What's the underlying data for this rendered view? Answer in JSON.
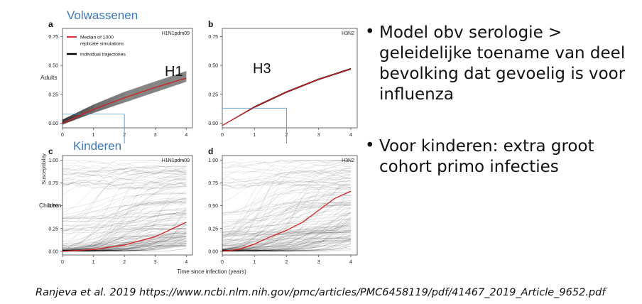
{
  "labels": {
    "adults_group": "Volwassenen",
    "children_group": "Kinderen",
    "row_adults": "Adults",
    "row_children": "Children",
    "y_axis": "Susceptibility",
    "x_axis": "Time since infection (years)",
    "h1": "H1",
    "h3": "H3"
  },
  "bullets": [
    "Model obv serologie > geleidelijke toename van deel bevolking dat gevoelig is voor influenza",
    "Voor kinderen: extra groot cohort primo infecties"
  ],
  "citation": "Ranjeva et al. 2019 https://www.ncbi.nlm.nih.gov/pmc/articles/PMC6458119/pdf/41467_2019_Article_9652.pdf",
  "colors": {
    "median": "#d42020",
    "trajectory": "#000000",
    "guide": "#5aa0d6",
    "group_label": "#3a78c0"
  },
  "chart_data": [
    {
      "panel": "a",
      "type": "line",
      "strain": "H1N1pdm09",
      "group": "Adults",
      "x": [
        0,
        1,
        2,
        3,
        4
      ],
      "xlim": [
        0,
        4.2
      ],
      "ylim": [
        -0.04,
        0.82
      ],
      "xticks": [
        "0",
        "1",
        "2",
        "3",
        "4"
      ],
      "yticks": [
        0,
        0.25,
        0.5,
        0.75
      ],
      "ytick_labels": [
        "0.00",
        "0.25",
        "0.50",
        "0.75"
      ],
      "legend": {
        "median": "Median of 1000\nreplicate simulations",
        "trajectories": "Individual trajectories",
        "position": "top-left"
      },
      "series": [
        {
          "role": "median",
          "name": "Median of 1000 replicate simulations",
          "values": [
            0.0,
            0.12,
            0.22,
            0.31,
            0.39
          ]
        },
        {
          "role": "band_low",
          "values": [
            -0.01,
            0.09,
            0.18,
            0.27,
            0.36
          ]
        },
        {
          "role": "band_high",
          "values": [
            0.03,
            0.16,
            0.27,
            0.36,
            0.45
          ]
        }
      ],
      "guide": {
        "x": 2,
        "y": 0.08
      }
    },
    {
      "panel": "b",
      "type": "line",
      "strain": "H3N2",
      "group": "Adults",
      "x": [
        0,
        1,
        2,
        3,
        4
      ],
      "xlim": [
        0,
        4.2
      ],
      "ylim": [
        -0.04,
        0.82
      ],
      "xticks": [
        "0",
        "1",
        "2",
        "3",
        "4"
      ],
      "yticks": [
        0,
        0.25,
        0.5,
        0.75
      ],
      "ytick_labels": [
        "0.00",
        "0.25",
        "0.50",
        "0.75"
      ],
      "series": [
        {
          "role": "median",
          "values": [
            -0.02,
            0.14,
            0.27,
            0.38,
            0.47
          ]
        },
        {
          "role": "band_low",
          "values": [
            -0.02,
            0.135,
            0.265,
            0.375,
            0.465
          ]
        },
        {
          "role": "band_high",
          "values": [
            -0.02,
            0.145,
            0.275,
            0.385,
            0.475
          ]
        }
      ],
      "guide": {
        "x": 2,
        "y": 0.13
      }
    },
    {
      "panel": "c",
      "type": "line",
      "strain": "H1N1pdm09",
      "group": "Children",
      "x": [
        0,
        1,
        2,
        3,
        4
      ],
      "xlim": [
        0,
        4.2
      ],
      "ylim": [
        -0.04,
        1.05
      ],
      "xticks": [
        "0",
        "1",
        "2",
        "3",
        "4"
      ],
      "yticks": [
        0,
        0.25,
        0.5,
        0.75,
        1.0
      ],
      "ytick_labels": [
        "0.00",
        "0.25",
        "0.50",
        "0.75",
        "1.00"
      ],
      "series": [
        {
          "role": "median",
          "values": [
            0.0,
            0.02,
            0.07,
            0.16,
            0.32
          ]
        }
      ]
    },
    {
      "panel": "d",
      "type": "line",
      "strain": "H3N2",
      "group": "Children",
      "x": [
        0,
        0.5,
        1,
        1.5,
        2,
        2.5,
        3,
        3.5,
        4
      ],
      "xlim": [
        0,
        4.2
      ],
      "ylim": [
        -0.04,
        1.05
      ],
      "xticks": [
        "0",
        "1",
        "2",
        "3",
        "4"
      ],
      "yticks": [
        0,
        0.25,
        0.5,
        0.75,
        1.0
      ],
      "ytick_labels": [
        "0.00",
        "0.25",
        "0.50",
        "0.75",
        "1.00"
      ],
      "series": [
        {
          "role": "median",
          "values": [
            0.0,
            0.02,
            0.08,
            0.16,
            0.23,
            0.32,
            0.45,
            0.58,
            0.66
          ]
        }
      ]
    }
  ]
}
